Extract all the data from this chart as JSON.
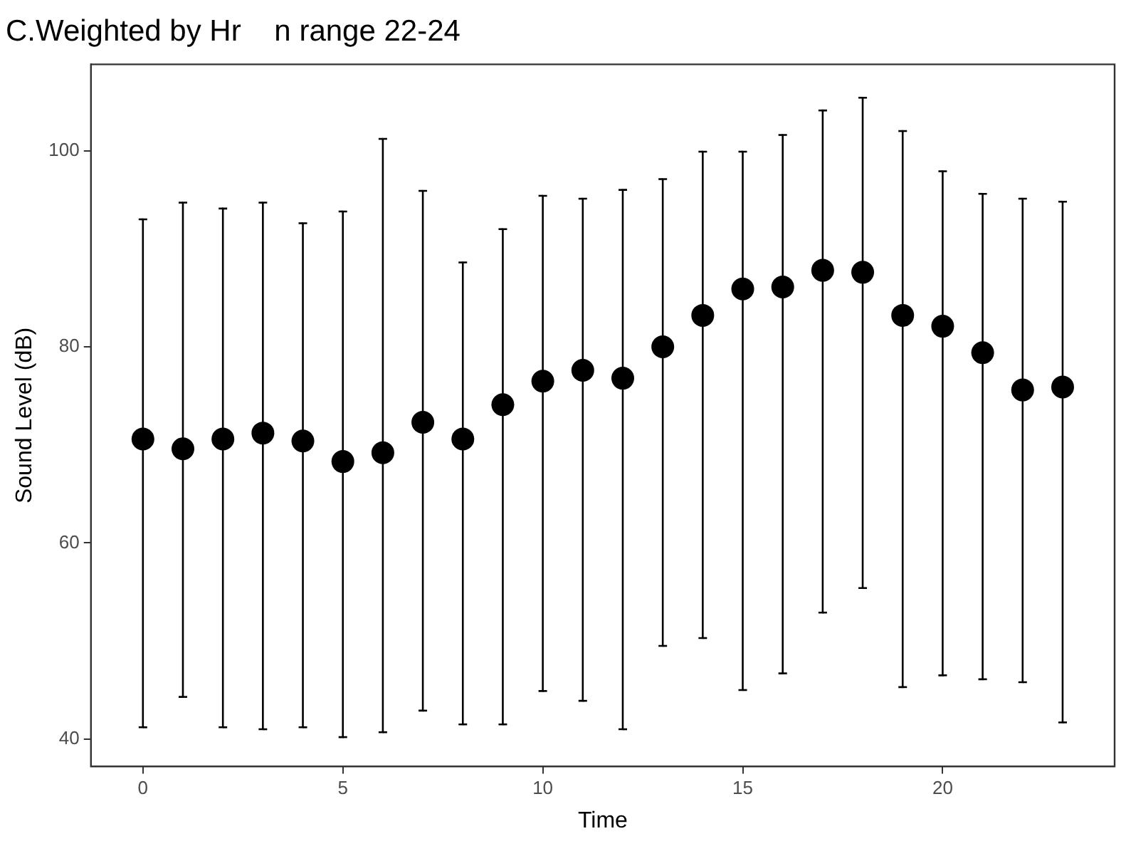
{
  "chart_data": {
    "type": "scatter",
    "title": "C.Weighted by Hr    n range 22-24",
    "xlabel": "Time",
    "ylabel": "Sound Level (dB)",
    "x": [
      0,
      1,
      2,
      3,
      4,
      5,
      6,
      7,
      8,
      9,
      10,
      11,
      12,
      13,
      14,
      15,
      16,
      17,
      18,
      19,
      20,
      21,
      22,
      23
    ],
    "series": [
      {
        "color": "#000000",
        "values": [
          70.6,
          69.6,
          70.6,
          71.2,
          70.4,
          68.3,
          69.2,
          72.3,
          70.6,
          74.1,
          76.5,
          77.6,
          76.8,
          80.0,
          83.2,
          85.9,
          86.1,
          87.8,
          87.6,
          83.2,
          82.1,
          79.4,
          75.6,
          75.9
        ],
        "errors": [
          [
            41.2,
            93.0
          ],
          [
            44.3,
            94.7
          ],
          [
            41.2,
            94.1
          ],
          [
            41.0,
            94.7
          ],
          [
            41.2,
            92.6
          ],
          [
            40.2,
            93.8
          ],
          [
            40.7,
            101.2
          ],
          [
            42.9,
            95.9
          ],
          [
            41.5,
            88.6
          ],
          [
            41.5,
            92.0
          ],
          [
            44.9,
            95.4
          ],
          [
            43.9,
            95.1
          ],
          [
            41.0,
            96.0
          ],
          [
            49.5,
            97.1
          ],
          [
            50.3,
            99.9
          ],
          [
            45.0,
            99.9
          ],
          [
            46.7,
            101.6
          ],
          [
            52.9,
            104.1
          ],
          [
            55.4,
            105.4
          ],
          [
            45.3,
            102.0
          ],
          [
            46.5,
            97.9
          ],
          [
            46.1,
            95.6
          ],
          [
            45.8,
            95.1
          ],
          [
            41.7,
            94.8
          ]
        ]
      }
    ],
    "xlim": [
      -1.3,
      24.3
    ],
    "ylim": [
      37.2,
      108.8
    ],
    "xticks": [
      0,
      5,
      10,
      15,
      20
    ],
    "yticks": [
      40,
      60,
      80,
      100
    ],
    "marker": "circle",
    "grid": false,
    "legend": false
  }
}
